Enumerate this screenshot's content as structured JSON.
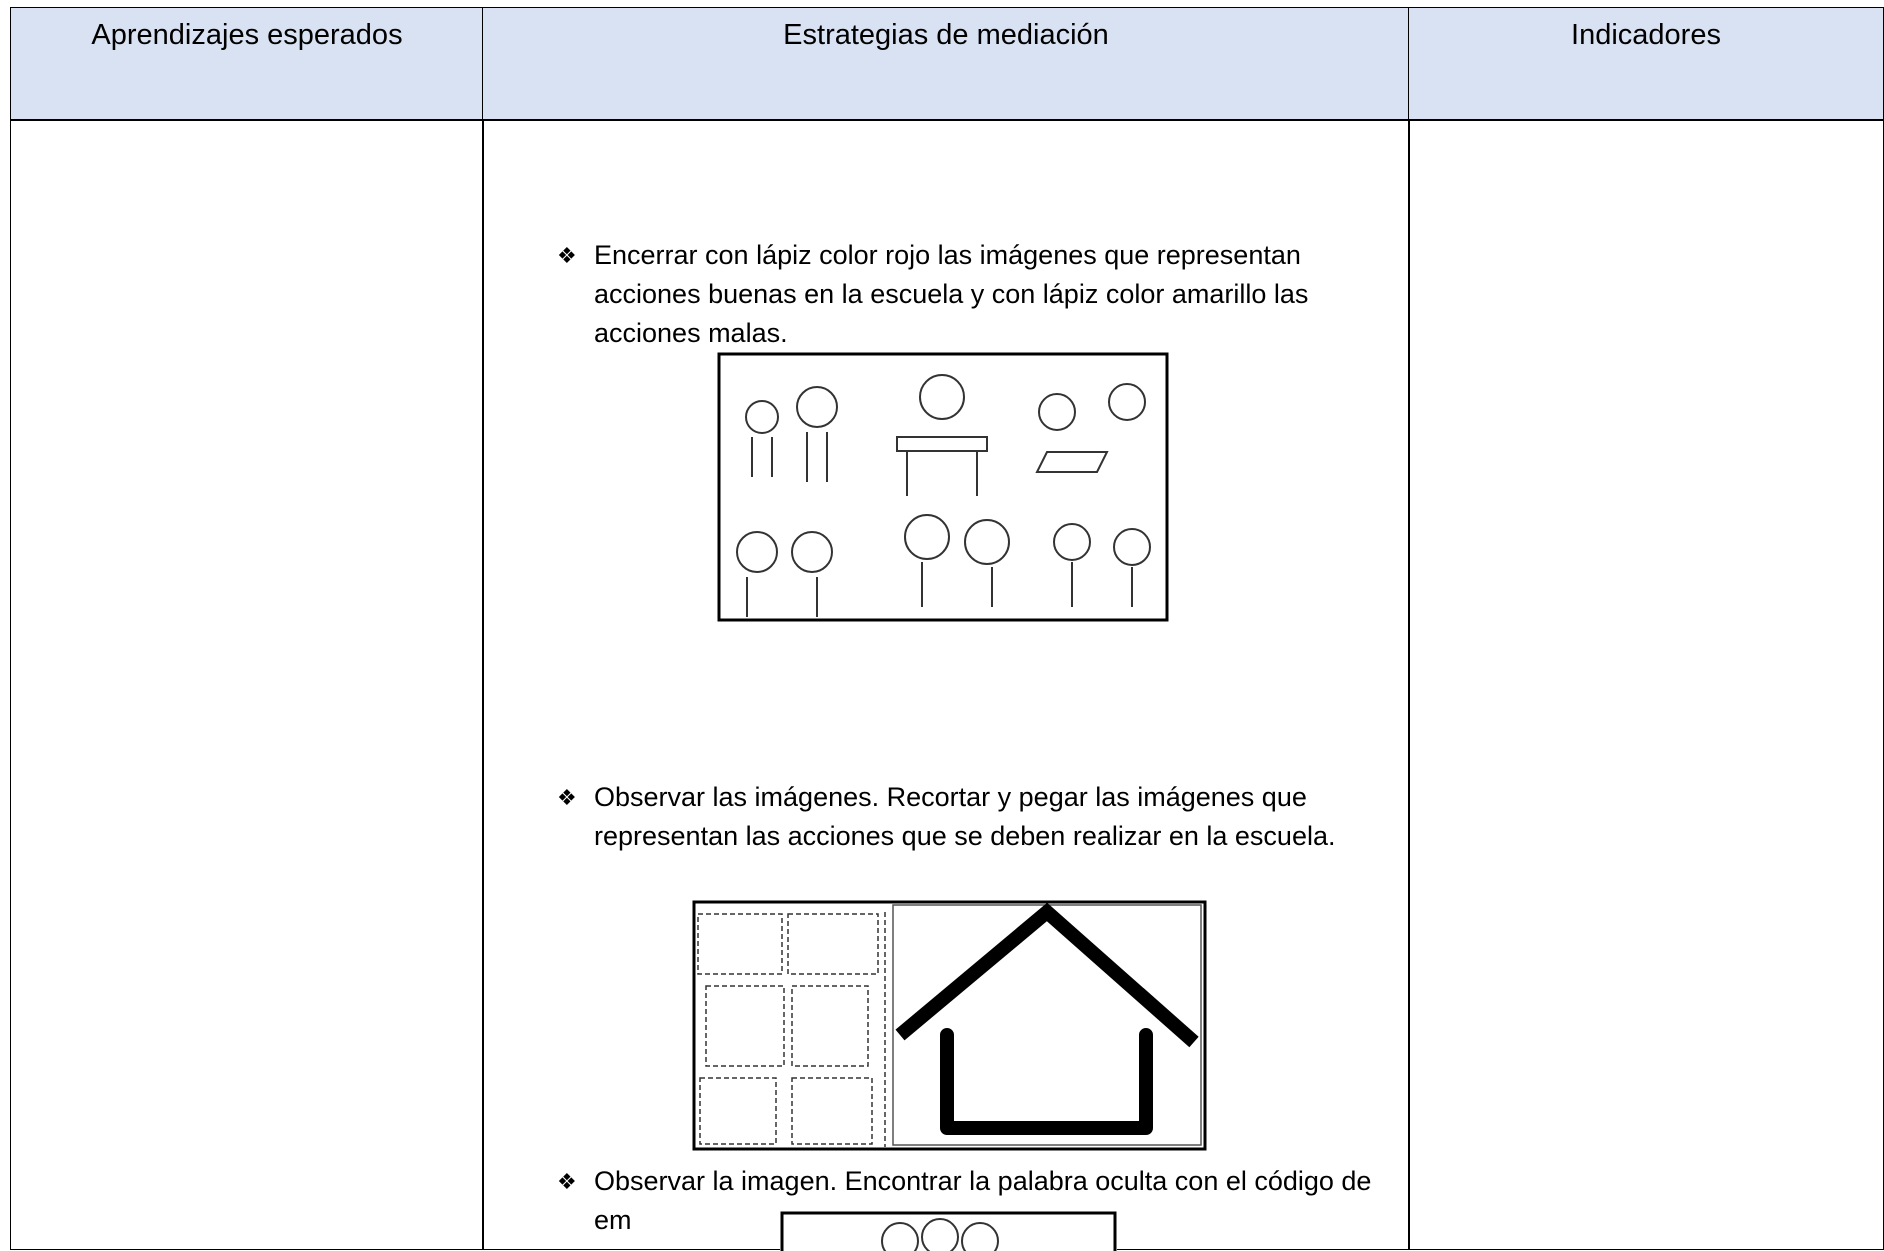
{
  "table": {
    "headers": [
      "Aprendizajes esperados",
      "Estrategias de mediación",
      "Indicadores"
    ],
    "activities": [
      "Encerrar con lápiz color rojo las imágenes que representan acciones buenas en la escuela y con lápiz color amarillo las acciones malas.",
      "Observar las imágenes. Recortar y pegar las imágenes que representan las acciones que se deben realizar en la escuela.",
      "Observar la imagen. Encontrar la palabra oculta con el código de em"
    ]
  }
}
